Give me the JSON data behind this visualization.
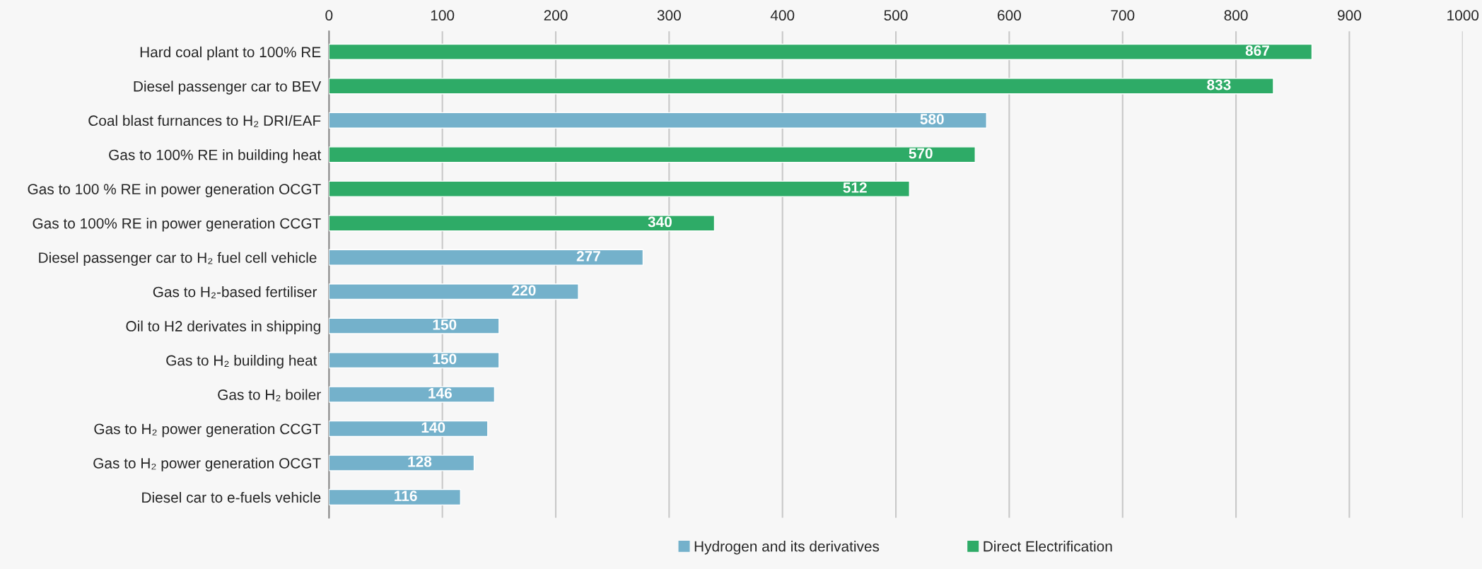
{
  "chart_data": {
    "type": "bar",
    "orientation": "horizontal",
    "categories": [
      "Hard coal plant to 100% RE",
      "Diesel passenger car to BEV",
      "Coal blast furnances to H₂ DRI/EAF",
      "Gas to 100% RE in building heat",
      "Gas to 100 % RE in power generation OCGT",
      "Gas to 100% RE in power generation CCGT",
      "Diesel passenger car to H₂ fuel cell vehicle ",
      "Gas to H₂-based fertiliser ",
      "Oil to H2 derivates in shipping",
      "Gas to H₂ building heat ",
      "Gas to H₂ boiler",
      "Gas to H₂ power generation CCGT",
      "Gas to H₂ power generation OCGT",
      "Diesel car to e-fuels vehicle"
    ],
    "series": [
      {
        "name": "Hydrogen and its derivatives",
        "color": "#74b1cb",
        "values": [
          null,
          null,
          580,
          null,
          null,
          null,
          277,
          220,
          150,
          150,
          146,
          140,
          128,
          116
        ]
      },
      {
        "name": "Direct Electrification",
        "color": "#2eab67",
        "values": [
          867,
          833,
          null,
          570,
          512,
          340,
          null,
          null,
          null,
          null,
          null,
          null,
          null,
          null
        ]
      }
    ],
    "xlim": [
      0,
      1000
    ],
    "xticks": [
      0,
      100,
      200,
      300,
      400,
      500,
      600,
      700,
      800,
      900,
      1000
    ],
    "grid": "x",
    "legend": "bottom",
    "data_labels": true
  }
}
